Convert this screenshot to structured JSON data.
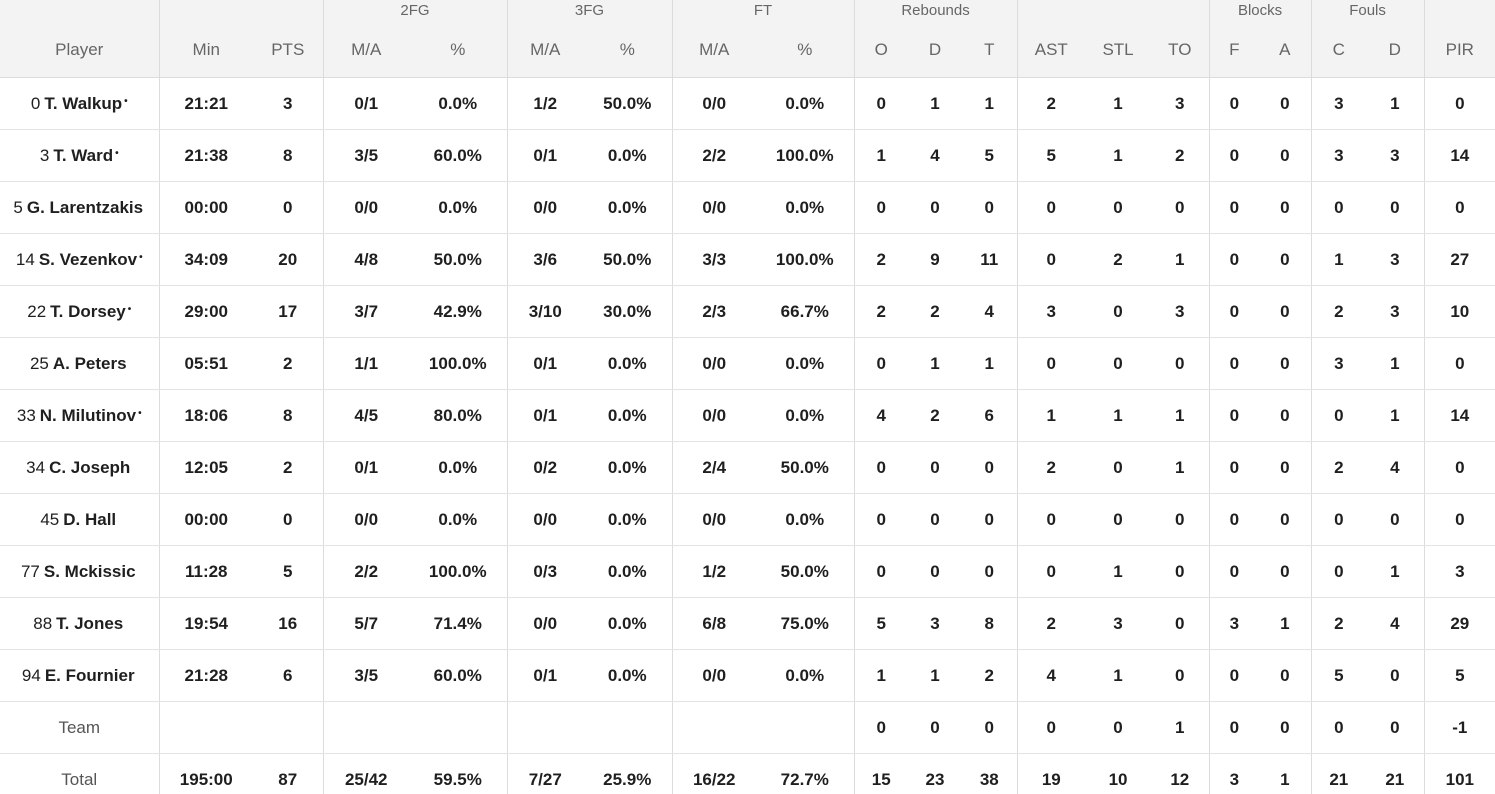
{
  "groups": {
    "fg2": "2FG",
    "fg3": "3FG",
    "ft": "FT",
    "rebounds": "Rebounds",
    "blocks": "Blocks",
    "fouls": "Fouls"
  },
  "columns": [
    "Player",
    "Min",
    "PTS",
    "M/A",
    "%",
    "M/A",
    "%",
    "M/A",
    "%",
    "O",
    "D",
    "T",
    "AST",
    "STL",
    "TO",
    "F",
    "A",
    "C",
    "D",
    "PIR"
  ],
  "players": [
    {
      "num": "0",
      "name": "T. Walkup",
      "starter": "•",
      "stats": [
        "21:21",
        "3",
        "0/1",
        "0.0%",
        "1/2",
        "50.0%",
        "0/0",
        "0.0%",
        "0",
        "1",
        "1",
        "2",
        "1",
        "3",
        "0",
        "0",
        "3",
        "1",
        "0"
      ]
    },
    {
      "num": "3",
      "name": "T. Ward",
      "starter": "•",
      "stats": [
        "21:38",
        "8",
        "3/5",
        "60.0%",
        "0/1",
        "0.0%",
        "2/2",
        "100.0%",
        "1",
        "4",
        "5",
        "5",
        "1",
        "2",
        "0",
        "0",
        "3",
        "3",
        "14"
      ]
    },
    {
      "num": "5",
      "name": "G. Larentzakis",
      "starter": "",
      "stats": [
        "00:00",
        "0",
        "0/0",
        "0.0%",
        "0/0",
        "0.0%",
        "0/0",
        "0.0%",
        "0",
        "0",
        "0",
        "0",
        "0",
        "0",
        "0",
        "0",
        "0",
        "0",
        "0"
      ]
    },
    {
      "num": "14",
      "name": "S. Vezenkov",
      "starter": "•",
      "stats": [
        "34:09",
        "20",
        "4/8",
        "50.0%",
        "3/6",
        "50.0%",
        "3/3",
        "100.0%",
        "2",
        "9",
        "11",
        "0",
        "2",
        "1",
        "0",
        "0",
        "1",
        "3",
        "27"
      ]
    },
    {
      "num": "22",
      "name": "T. Dorsey",
      "starter": "•",
      "stats": [
        "29:00",
        "17",
        "3/7",
        "42.9%",
        "3/10",
        "30.0%",
        "2/3",
        "66.7%",
        "2",
        "2",
        "4",
        "3",
        "0",
        "3",
        "0",
        "0",
        "2",
        "3",
        "10"
      ]
    },
    {
      "num": "25",
      "name": "A. Peters",
      "starter": "",
      "stats": [
        "05:51",
        "2",
        "1/1",
        "100.0%",
        "0/1",
        "0.0%",
        "0/0",
        "0.0%",
        "0",
        "1",
        "1",
        "0",
        "0",
        "0",
        "0",
        "0",
        "3",
        "1",
        "0"
      ]
    },
    {
      "num": "33",
      "name": "N. Milutinov",
      "starter": "•",
      "stats": [
        "18:06",
        "8",
        "4/5",
        "80.0%",
        "0/1",
        "0.0%",
        "0/0",
        "0.0%",
        "4",
        "2",
        "6",
        "1",
        "1",
        "1",
        "0",
        "0",
        "0",
        "1",
        "14"
      ]
    },
    {
      "num": "34",
      "name": "C. Joseph",
      "starter": "",
      "stats": [
        "12:05",
        "2",
        "0/1",
        "0.0%",
        "0/2",
        "0.0%",
        "2/4",
        "50.0%",
        "0",
        "0",
        "0",
        "2",
        "0",
        "1",
        "0",
        "0",
        "2",
        "4",
        "0"
      ]
    },
    {
      "num": "45",
      "name": "D. Hall",
      "starter": "",
      "stats": [
        "00:00",
        "0",
        "0/0",
        "0.0%",
        "0/0",
        "0.0%",
        "0/0",
        "0.0%",
        "0",
        "0",
        "0",
        "0",
        "0",
        "0",
        "0",
        "0",
        "0",
        "0",
        "0"
      ]
    },
    {
      "num": "77",
      "name": "S. Mckissic",
      "starter": "",
      "stats": [
        "11:28",
        "5",
        "2/2",
        "100.0%",
        "0/3",
        "0.0%",
        "1/2",
        "50.0%",
        "0",
        "0",
        "0",
        "0",
        "1",
        "0",
        "0",
        "0",
        "0",
        "1",
        "3"
      ]
    },
    {
      "num": "88",
      "name": "T. Jones",
      "starter": "",
      "stats": [
        "19:54",
        "16",
        "5/7",
        "71.4%",
        "0/0",
        "0.0%",
        "6/8",
        "75.0%",
        "5",
        "3",
        "8",
        "2",
        "3",
        "0",
        "3",
        "1",
        "2",
        "4",
        "29"
      ]
    },
    {
      "num": "94",
      "name": "E. Fournier",
      "starter": "",
      "stats": [
        "21:28",
        "6",
        "3/5",
        "60.0%",
        "0/1",
        "0.0%",
        "0/0",
        "0.0%",
        "1",
        "1",
        "2",
        "4",
        "1",
        "0",
        "0",
        "0",
        "5",
        "0",
        "5"
      ]
    }
  ],
  "team": {
    "label": "Team",
    "stats": [
      "",
      "",
      "",
      "",
      "",
      "",
      "",
      "",
      "0",
      "0",
      "0",
      "0",
      "0",
      "1",
      "0",
      "0",
      "0",
      "0",
      "-1"
    ]
  },
  "total": {
    "label": "Total",
    "stats": [
      "195:00",
      "87",
      "25/42",
      "59.5%",
      "7/27",
      "25.9%",
      "16/22",
      "72.7%",
      "15",
      "23",
      "38",
      "19",
      "10",
      "12",
      "3",
      "1",
      "21",
      "21",
      "101"
    ]
  },
  "colors": {
    "header_bg": "#f3f3f3",
    "header_text": "#666666",
    "body_text": "#1f1f1f",
    "grid_line": "#dcdcdc"
  }
}
